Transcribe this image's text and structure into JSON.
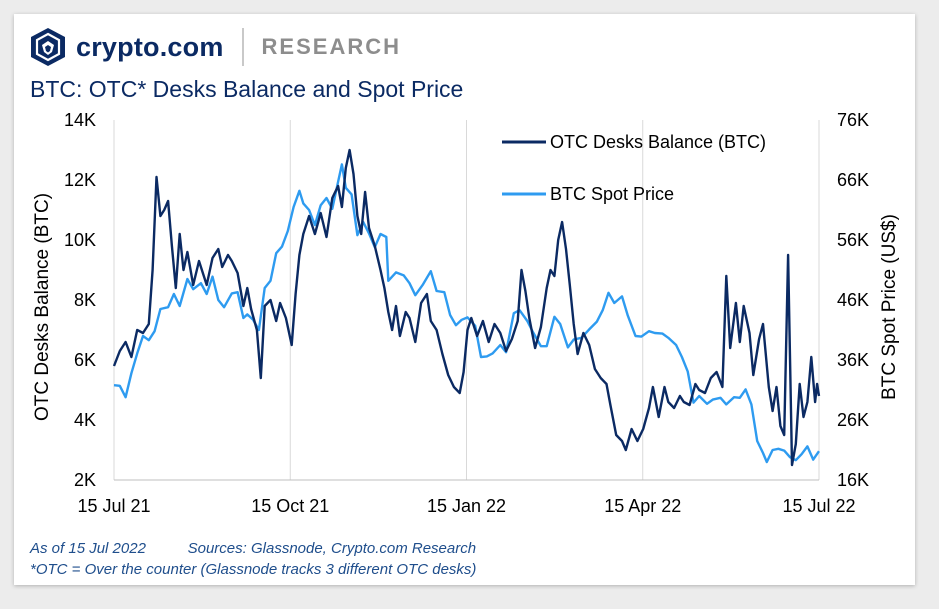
{
  "header": {
    "brand": "crypto.com",
    "section": "RESEARCH",
    "logo_icon": "crypto-com-lion-shield-icon"
  },
  "chart_data": {
    "type": "line",
    "title": "BTC: OTC* Desks Balance and Spot Price",
    "x_ticks": [
      "15 Jul 21",
      "15 Oct 21",
      "15 Jan 22",
      "15 Apr 22",
      "15 Jul 22"
    ],
    "x_range": [
      "2021-07-15",
      "2022-07-15"
    ],
    "ylabel_left": "OTC Desks Balance (BTC)",
    "ylabel_right": "BTC Spot Price (US$)",
    "ylim_left": [
      2000,
      14000
    ],
    "ylim_right": [
      16000,
      76000
    ],
    "yticks_left": [
      "2K",
      "4K",
      "6K",
      "8K",
      "10K",
      "12K",
      "14K"
    ],
    "yticks_right": [
      "16K",
      "26K",
      "36K",
      "46K",
      "56K",
      "66K",
      "76K"
    ],
    "legend_position": "top-right",
    "grid": "vertical",
    "series": [
      {
        "name": "OTC Desks Balance (BTC)",
        "axis": "left",
        "color": "#0b2a63",
        "points": [
          [
            "2021-07-15",
            5800
          ],
          [
            "2021-07-18",
            6300
          ],
          [
            "2021-07-21",
            6600
          ],
          [
            "2021-07-24",
            6100
          ],
          [
            "2021-07-27",
            7000
          ],
          [
            "2021-07-30",
            6900
          ],
          [
            "2021-08-02",
            7200
          ],
          [
            "2021-08-04",
            9000
          ],
          [
            "2021-08-06",
            12100
          ],
          [
            "2021-08-08",
            10800
          ],
          [
            "2021-08-10",
            11000
          ],
          [
            "2021-08-12",
            11300
          ],
          [
            "2021-08-14",
            9800
          ],
          [
            "2021-08-16",
            8400
          ],
          [
            "2021-08-18",
            10200
          ],
          [
            "2021-08-20",
            9000
          ],
          [
            "2021-08-22",
            9600
          ],
          [
            "2021-08-25",
            8500
          ],
          [
            "2021-08-28",
            9300
          ],
          [
            "2021-09-01",
            8500
          ],
          [
            "2021-09-04",
            9400
          ],
          [
            "2021-09-07",
            9700
          ],
          [
            "2021-09-09",
            9100
          ],
          [
            "2021-09-12",
            9500
          ],
          [
            "2021-09-14",
            9300
          ],
          [
            "2021-09-17",
            8900
          ],
          [
            "2021-09-20",
            7800
          ],
          [
            "2021-09-22",
            8400
          ],
          [
            "2021-09-24",
            7700
          ],
          [
            "2021-09-27",
            7000
          ],
          [
            "2021-09-29",
            5400
          ],
          [
            "2021-10-01",
            7800
          ],
          [
            "2021-10-04",
            8000
          ],
          [
            "2021-10-07",
            7300
          ],
          [
            "2021-10-09",
            7900
          ],
          [
            "2021-10-12",
            7400
          ],
          [
            "2021-10-15",
            6500
          ],
          [
            "2021-10-17",
            8200
          ],
          [
            "2021-10-19",
            9500
          ],
          [
            "2021-10-21",
            10200
          ],
          [
            "2021-10-24",
            10800
          ],
          [
            "2021-10-27",
            10200
          ],
          [
            "2021-10-30",
            10900
          ],
          [
            "2021-11-02",
            10100
          ],
          [
            "2021-11-05",
            11400
          ],
          [
            "2021-11-08",
            11800
          ],
          [
            "2021-11-10",
            11100
          ],
          [
            "2021-11-12",
            12400
          ],
          [
            "2021-11-14",
            13000
          ],
          [
            "2021-11-16",
            12200
          ],
          [
            "2021-11-18",
            10800
          ],
          [
            "2021-11-20",
            10200
          ],
          [
            "2021-11-22",
            11600
          ],
          [
            "2021-11-24",
            10400
          ],
          [
            "2021-11-27",
            9800
          ],
          [
            "2021-11-30",
            9000
          ],
          [
            "2021-12-02",
            8400
          ],
          [
            "2021-12-04",
            7600
          ],
          [
            "2021-12-06",
            7000
          ],
          [
            "2021-12-08",
            7800
          ],
          [
            "2021-12-10",
            6800
          ],
          [
            "2021-12-13",
            7600
          ],
          [
            "2021-12-15",
            7400
          ],
          [
            "2021-12-18",
            6600
          ],
          [
            "2021-12-21",
            7900
          ],
          [
            "2021-12-24",
            8200
          ],
          [
            "2021-12-26",
            7300
          ],
          [
            "2021-12-29",
            7000
          ],
          [
            "2022-01-01",
            6200
          ],
          [
            "2022-01-04",
            5500
          ],
          [
            "2022-01-07",
            5100
          ],
          [
            "2022-01-10",
            4900
          ],
          [
            "2022-01-12",
            5600
          ],
          [
            "2022-01-14",
            7000
          ],
          [
            "2022-01-16",
            7400
          ],
          [
            "2022-01-19",
            6800
          ],
          [
            "2022-01-22",
            7300
          ],
          [
            "2022-01-25",
            6600
          ],
          [
            "2022-01-28",
            7200
          ],
          [
            "2022-01-31",
            6900
          ],
          [
            "2022-02-03",
            6300
          ],
          [
            "2022-02-06",
            6700
          ],
          [
            "2022-02-09",
            7300
          ],
          [
            "2022-02-11",
            9000
          ],
          [
            "2022-02-13",
            8300
          ],
          [
            "2022-02-15",
            7400
          ],
          [
            "2022-02-18",
            6400
          ],
          [
            "2022-02-21",
            7100
          ],
          [
            "2022-02-24",
            8400
          ],
          [
            "2022-02-26",
            9000
          ],
          [
            "2022-02-28",
            8800
          ],
          [
            "2022-03-02",
            10000
          ],
          [
            "2022-03-04",
            10600
          ],
          [
            "2022-03-06",
            9700
          ],
          [
            "2022-03-08",
            8500
          ],
          [
            "2022-03-10",
            7200
          ],
          [
            "2022-03-12",
            6200
          ],
          [
            "2022-03-15",
            6900
          ],
          [
            "2022-03-18",
            6500
          ],
          [
            "2022-03-21",
            5700
          ],
          [
            "2022-03-24",
            5400
          ],
          [
            "2022-03-27",
            5200
          ],
          [
            "2022-03-29",
            4500
          ],
          [
            "2022-04-01",
            3500
          ],
          [
            "2022-04-04",
            3300
          ],
          [
            "2022-04-06",
            3000
          ],
          [
            "2022-04-09",
            3700
          ],
          [
            "2022-04-12",
            3300
          ],
          [
            "2022-04-15",
            3700
          ],
          [
            "2022-04-18",
            4400
          ],
          [
            "2022-04-20",
            5100
          ],
          [
            "2022-04-23",
            4100
          ],
          [
            "2022-04-26",
            5100
          ],
          [
            "2022-04-28",
            4600
          ],
          [
            "2022-05-01",
            4400
          ],
          [
            "2022-05-04",
            4800
          ],
          [
            "2022-05-06",
            4600
          ],
          [
            "2022-05-09",
            4500
          ],
          [
            "2022-05-12",
            5200
          ],
          [
            "2022-05-14",
            5000
          ],
          [
            "2022-05-17",
            4900
          ],
          [
            "2022-05-20",
            5400
          ],
          [
            "2022-05-23",
            5600
          ],
          [
            "2022-05-26",
            5100
          ],
          [
            "2022-05-28",
            8800
          ],
          [
            "2022-05-30",
            6400
          ],
          [
            "2022-06-02",
            7900
          ],
          [
            "2022-06-04",
            6600
          ],
          [
            "2022-06-06",
            7800
          ],
          [
            "2022-06-09",
            6900
          ],
          [
            "2022-06-11",
            5500
          ],
          [
            "2022-06-14",
            6700
          ],
          [
            "2022-06-16",
            7200
          ],
          [
            "2022-06-19",
            5100
          ],
          [
            "2022-06-21",
            4300
          ],
          [
            "2022-06-23",
            5100
          ],
          [
            "2022-06-25",
            3800
          ],
          [
            "2022-06-27",
            3500
          ],
          [
            "2022-06-29",
            9500
          ],
          [
            "2022-07-01",
            2500
          ],
          [
            "2022-07-03",
            3200
          ],
          [
            "2022-07-05",
            5200
          ],
          [
            "2022-07-07",
            4100
          ],
          [
            "2022-07-09",
            4600
          ],
          [
            "2022-07-11",
            6100
          ],
          [
            "2022-07-13",
            4600
          ],
          [
            "2022-07-14",
            5200
          ],
          [
            "2022-07-15",
            4800
          ]
        ]
      },
      {
        "name": "BTC Spot Price",
        "axis": "right",
        "color": "#2e9bf0",
        "points": [
          [
            "2021-07-15",
            31800
          ],
          [
            "2021-07-18",
            31700
          ],
          [
            "2021-07-21",
            29800
          ],
          [
            "2021-07-24",
            33800
          ],
          [
            "2021-07-27",
            37100
          ],
          [
            "2021-07-30",
            40000
          ],
          [
            "2021-08-02",
            39300
          ],
          [
            "2021-08-05",
            40800
          ],
          [
            "2021-08-08",
            44500
          ],
          [
            "2021-08-12",
            44800
          ],
          [
            "2021-08-15",
            47000
          ],
          [
            "2021-08-18",
            45000
          ],
          [
            "2021-08-22",
            49500
          ],
          [
            "2021-08-25",
            47800
          ],
          [
            "2021-08-29",
            48800
          ],
          [
            "2021-09-01",
            47000
          ],
          [
            "2021-09-04",
            49900
          ],
          [
            "2021-09-07",
            46000
          ],
          [
            "2021-09-10",
            44800
          ],
          [
            "2021-09-14",
            47100
          ],
          [
            "2021-09-17",
            47300
          ],
          [
            "2021-09-20",
            43000
          ],
          [
            "2021-09-22",
            43600
          ],
          [
            "2021-09-25",
            42700
          ],
          [
            "2021-09-28",
            41000
          ],
          [
            "2021-10-01",
            48000
          ],
          [
            "2021-10-04",
            49200
          ],
          [
            "2021-10-07",
            53800
          ],
          [
            "2021-10-10",
            54900
          ],
          [
            "2021-10-13",
            57500
          ],
          [
            "2021-10-16",
            61500
          ],
          [
            "2021-10-19",
            64200
          ],
          [
            "2021-10-21",
            62100
          ],
          [
            "2021-10-24",
            61000
          ],
          [
            "2021-10-27",
            58500
          ],
          [
            "2021-10-30",
            61800
          ],
          [
            "2021-11-02",
            63000
          ],
          [
            "2021-11-05",
            61200
          ],
          [
            "2021-11-08",
            65700
          ],
          [
            "2021-11-10",
            68600
          ],
          [
            "2021-11-12",
            64700
          ],
          [
            "2021-11-15",
            63600
          ],
          [
            "2021-11-18",
            56800
          ],
          [
            "2021-11-21",
            59000
          ],
          [
            "2021-11-24",
            57100
          ],
          [
            "2021-11-27",
            54800
          ],
          [
            "2021-11-30",
            57000
          ],
          [
            "2021-12-03",
            56500
          ],
          [
            "2021-12-04",
            49200
          ],
          [
            "2021-12-08",
            50600
          ],
          [
            "2021-12-12",
            50100
          ],
          [
            "2021-12-15",
            48800
          ],
          [
            "2021-12-18",
            46800
          ],
          [
            "2021-12-22",
            48600
          ],
          [
            "2021-12-26",
            50800
          ],
          [
            "2021-12-29",
            47500
          ],
          [
            "2022-01-02",
            47300
          ],
          [
            "2022-01-05",
            43500
          ],
          [
            "2022-01-08",
            41800
          ],
          [
            "2022-01-11",
            42700
          ],
          [
            "2022-01-14",
            43100
          ],
          [
            "2022-01-18",
            41700
          ],
          [
            "2022-01-21",
            36500
          ],
          [
            "2022-01-24",
            36600
          ],
          [
            "2022-01-27",
            37100
          ],
          [
            "2022-01-31",
            38500
          ],
          [
            "2022-02-03",
            37300
          ],
          [
            "2022-02-07",
            43800
          ],
          [
            "2022-02-10",
            44300
          ],
          [
            "2022-02-14",
            42500
          ],
          [
            "2022-02-17",
            40600
          ],
          [
            "2022-02-21",
            38300
          ],
          [
            "2022-02-24",
            38300
          ],
          [
            "2022-02-28",
            43200
          ],
          [
            "2022-03-03",
            42000
          ],
          [
            "2022-03-07",
            38100
          ],
          [
            "2022-03-10",
            39400
          ],
          [
            "2022-03-14",
            39700
          ],
          [
            "2022-03-18",
            41100
          ],
          [
            "2022-03-22",
            42400
          ],
          [
            "2022-03-25",
            44300
          ],
          [
            "2022-03-28",
            47200
          ],
          [
            "2022-03-31",
            45500
          ],
          [
            "2022-04-04",
            46600
          ],
          [
            "2022-04-07",
            43400
          ],
          [
            "2022-04-11",
            40000
          ],
          [
            "2022-04-14",
            39900
          ],
          [
            "2022-04-18",
            40800
          ],
          [
            "2022-04-21",
            40500
          ],
          [
            "2022-04-25",
            40400
          ],
          [
            "2022-04-28",
            39700
          ],
          [
            "2022-05-02",
            38500
          ],
          [
            "2022-05-05",
            36500
          ],
          [
            "2022-05-08",
            34100
          ],
          [
            "2022-05-11",
            28900
          ],
          [
            "2022-05-14",
            30000
          ],
          [
            "2022-05-18",
            28700
          ],
          [
            "2022-05-21",
            29400
          ],
          [
            "2022-05-25",
            29700
          ],
          [
            "2022-05-28",
            28600
          ],
          [
            "2022-06-01",
            29800
          ],
          [
            "2022-06-04",
            29700
          ],
          [
            "2022-06-07",
            31100
          ],
          [
            "2022-06-10",
            28600
          ],
          [
            "2022-06-13",
            22500
          ],
          [
            "2022-06-16",
            20500
          ],
          [
            "2022-06-18",
            19000
          ],
          [
            "2022-06-21",
            21000
          ],
          [
            "2022-06-24",
            21200
          ],
          [
            "2022-06-27",
            20900
          ],
          [
            "2022-06-30",
            19800
          ],
          [
            "2022-07-03",
            19300
          ],
          [
            "2022-07-06",
            20300
          ],
          [
            "2022-07-09",
            21600
          ],
          [
            "2022-07-12",
            19400
          ],
          [
            "2022-07-15",
            20800
          ]
        ]
      }
    ]
  },
  "footnotes": {
    "as_of": "As of 15 Jul 2022",
    "sources": "Sources: Glassnode, Crypto.com Research",
    "otc_note": "*OTC = Over the counter (Glassnode tracks 3 different OTC desks)"
  }
}
